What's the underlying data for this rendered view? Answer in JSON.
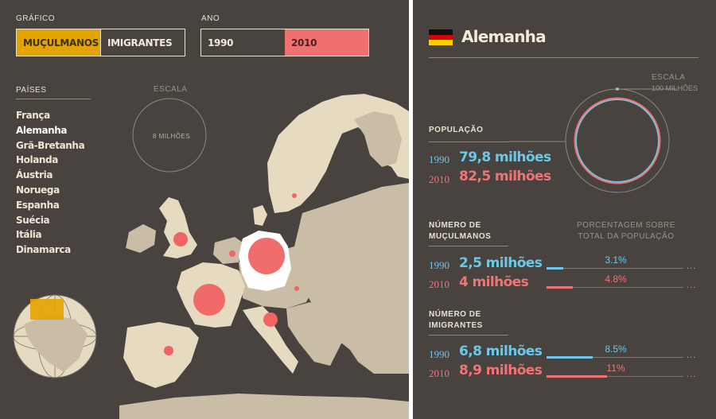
{
  "left": {
    "grafico_label": "GRÁFICO",
    "grafico_options": [
      "MUÇULMANOS",
      "IMIGRANTES"
    ],
    "ano_label": "ANO",
    "ano_options": [
      "1990",
      "2010"
    ],
    "paises_label": "PAÍSES",
    "countries": [
      "França",
      "Alemanha",
      "Grã-Bretanha",
      "Holanda",
      "Áustria",
      "Noruega",
      "Espanha",
      "Suécia",
      "Itália",
      "Dinamarca"
    ],
    "selected_country": "Alemanha",
    "scale_label": "ESCALA",
    "scale_value": "8 MILHÕES"
  },
  "right": {
    "country_title": "Alemanha",
    "scale_label": "ESCALA",
    "scale_value": "100 MILHÕES",
    "population_label": "POPULAÇÃO",
    "population": [
      {
        "year": "1990",
        "value": "79,8 milhões"
      },
      {
        "year": "2010",
        "value": "82,5 milhões"
      }
    ],
    "muslims_label": [
      "NÚMERO DE",
      "MUÇULMANOS"
    ],
    "percent_header": [
      "PORCENTAGEM SOBRE",
      "TOTAL DA POPULAÇÃO"
    ],
    "muslims": [
      {
        "year": "1990",
        "value": "2,5 milhões",
        "pct": "3.1%",
        "pct_num": 3.1
      },
      {
        "year": "2010",
        "value": "4 milhões",
        "pct": "4.8%",
        "pct_num": 4.8
      }
    ],
    "immigrants_label": [
      "NÚMERO DE",
      "IMIGRANTES"
    ],
    "immigrants": [
      {
        "year": "1990",
        "value": "6,8 milhões",
        "pct": "8.5%",
        "pct_num": 8.5
      },
      {
        "year": "2010",
        "value": "8,9 milhões",
        "pct": "11%",
        "pct_num": 11
      }
    ],
    "ellipsis": "..."
  },
  "colors": {
    "bg": "#48433f",
    "land": "#e6dbc0",
    "land_dark": "#c9bea5",
    "blue": "#6cc8e8",
    "red": "#f07474",
    "yellow": "#e4a400"
  }
}
